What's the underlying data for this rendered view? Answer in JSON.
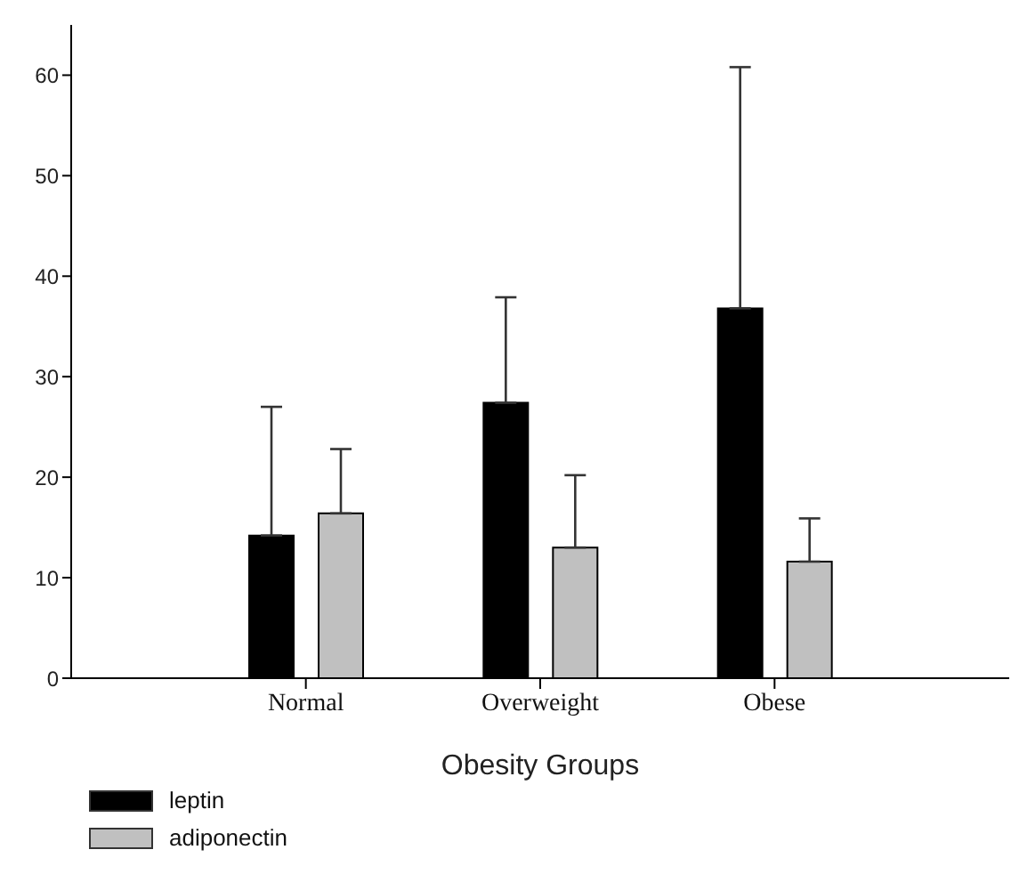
{
  "chart_data": {
    "type": "bar",
    "xlabel": "Obesity Groups",
    "categories": [
      "Normal",
      "Overweight",
      "Obese"
    ],
    "series": [
      {
        "name": "leptin",
        "color": "#000000",
        "values": [
          14.2,
          27.4,
          36.8
        ],
        "errors": [
          [
            14.2,
            27.0
          ],
          [
            27.4,
            37.9
          ],
          [
            36.8,
            60.8
          ]
        ]
      },
      {
        "name": "adiponectin",
        "color": "#c0c0c0",
        "values": [
          16.4,
          13.0,
          11.6
        ],
        "errors": [
          [
            16.4,
            22.8
          ],
          [
            13.0,
            20.2
          ],
          [
            11.6,
            15.9
          ]
        ]
      }
    ],
    "ylim": [
      0,
      65
    ],
    "yticks": [
      0,
      10,
      20,
      30,
      40,
      50,
      60
    ],
    "grid": false,
    "legend": "bottom left"
  }
}
